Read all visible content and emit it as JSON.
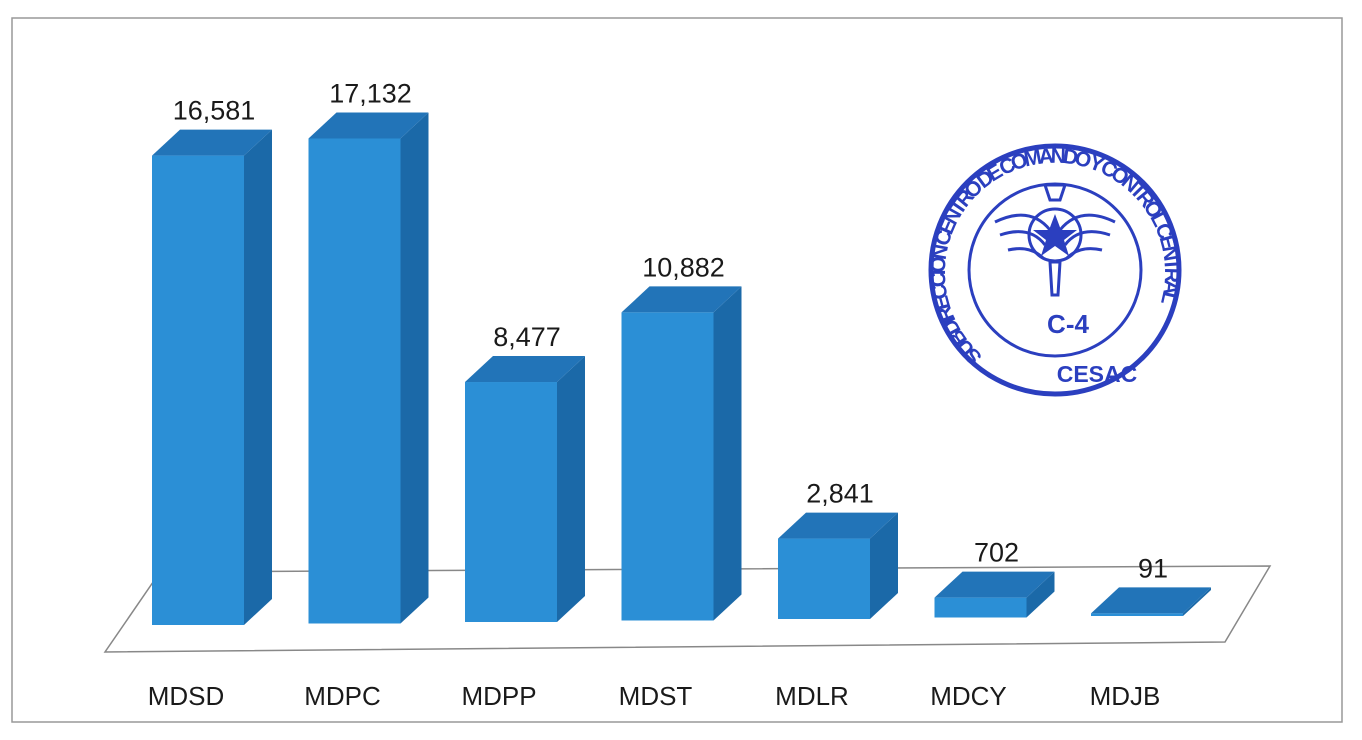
{
  "chart_data": {
    "type": "bar3d",
    "categories": [
      "MDSD",
      "MDPC",
      "MDPP",
      "MDST",
      "MDLR",
      "MDCY",
      "MDJB"
    ],
    "values": [
      16581,
      17132,
      8477,
      10882,
      2841,
      702,
      91
    ],
    "value_labels": [
      "16,581",
      "17,132",
      "8,477",
      "10,882",
      "2,841",
      "702",
      "91"
    ],
    "color": "#2b8fd6",
    "stamp": {
      "ring_text": "SUBDIRECCION CENTRO DE COMANDO Y CONTROL CENTRAL",
      "center_text": "C-4",
      "bottom_text": "CESAC"
    }
  }
}
